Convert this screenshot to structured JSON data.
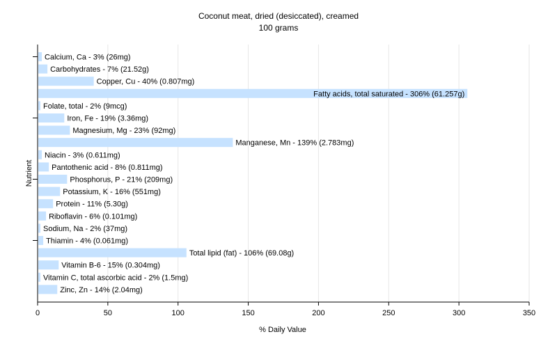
{
  "chart_data": {
    "type": "bar",
    "orientation": "horizontal",
    "title": "Coconut meat, dried (desiccated), creamed",
    "subtitle": "100 grams",
    "xlabel": "% Daily Value",
    "ylabel": "Nutrient",
    "xlim": [
      0,
      350
    ],
    "xticks": [
      "0",
      "50",
      "100",
      "150",
      "200",
      "250",
      "300",
      "350"
    ],
    "grid": true,
    "bar_color": "#c6e2ff",
    "categories": [
      "Calcium, Ca",
      "Carbohydrates",
      "Copper, Cu",
      "Fatty acids, total saturated",
      "Folate, total",
      "Iron, Fe",
      "Magnesium, Mg",
      "Manganese, Mn",
      "Niacin",
      "Pantothenic acid",
      "Phosphorus, P",
      "Potassium, K",
      "Protein",
      "Riboflavin",
      "Sodium, Na",
      "Thiamin",
      "Total lipid (fat)",
      "Vitamin B-6",
      "Vitamin C, total ascorbic acid",
      "Zinc, Zn"
    ],
    "values": [
      3,
      7,
      40,
      306,
      2,
      19,
      23,
      139,
      3,
      8,
      21,
      16,
      11,
      6,
      2,
      4,
      106,
      15,
      2,
      14
    ],
    "labels": [
      "Calcium, Ca - 3% (26mg)",
      "Carbohydrates - 7% (21.52g)",
      "Copper, Cu - 40% (0.807mg)",
      "Fatty acids, total saturated - 306% (61.257g)",
      "Folate, total - 2% (9mcg)",
      "Iron, Fe - 19% (3.36mg)",
      "Magnesium, Mg - 23% (92mg)",
      "Manganese, Mn - 139% (2.783mg)",
      "Niacin - 3% (0.611mg)",
      "Pantothenic acid - 8% (0.811mg)",
      "Phosphorus, P - 21% (209mg)",
      "Potassium, K - 16% (551mg)",
      "Protein - 11% (5.30g)",
      "Riboflavin - 6% (0.101mg)",
      "Sodium, Na - 2% (37mg)",
      "Thiamin - 4% (0.061mg)",
      "Total lipid (fat) - 106% (69.08g)",
      "Vitamin B-6 - 15% (0.304mg)",
      "Vitamin C, total ascorbic acid - 2% (1.5mg)",
      "Zinc, Zn - 14% (2.04mg)"
    ]
  }
}
